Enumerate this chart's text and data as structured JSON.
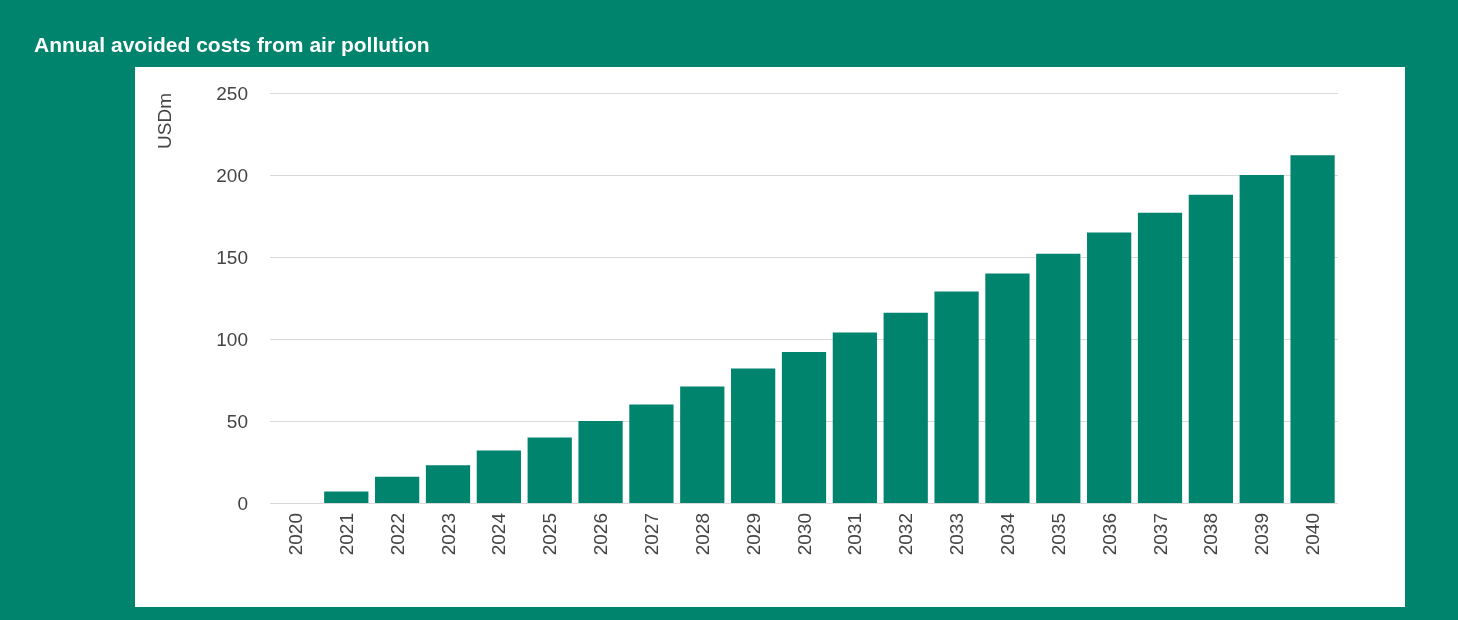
{
  "chart_data": {
    "type": "bar",
    "title": "Annual avoided costs from air pollution",
    "ylabel": "USDm",
    "categories": [
      "2020",
      "2021",
      "2022",
      "2023",
      "2024",
      "2025",
      "2026",
      "2027",
      "2028",
      "2029",
      "2030",
      "2031",
      "2032",
      "2033",
      "2034",
      "2035",
      "2036",
      "2037",
      "2038",
      "2039",
      "2040"
    ],
    "values": [
      0,
      7,
      16,
      23,
      32,
      40,
      50,
      60,
      71,
      82,
      92,
      104,
      116,
      129,
      140,
      152,
      165,
      177,
      188,
      200,
      212
    ],
    "color": "#00846e",
    "ylim": [
      0,
      250
    ],
    "yticks": [
      0,
      50,
      100,
      150,
      200,
      250
    ],
    "grid": "y"
  }
}
